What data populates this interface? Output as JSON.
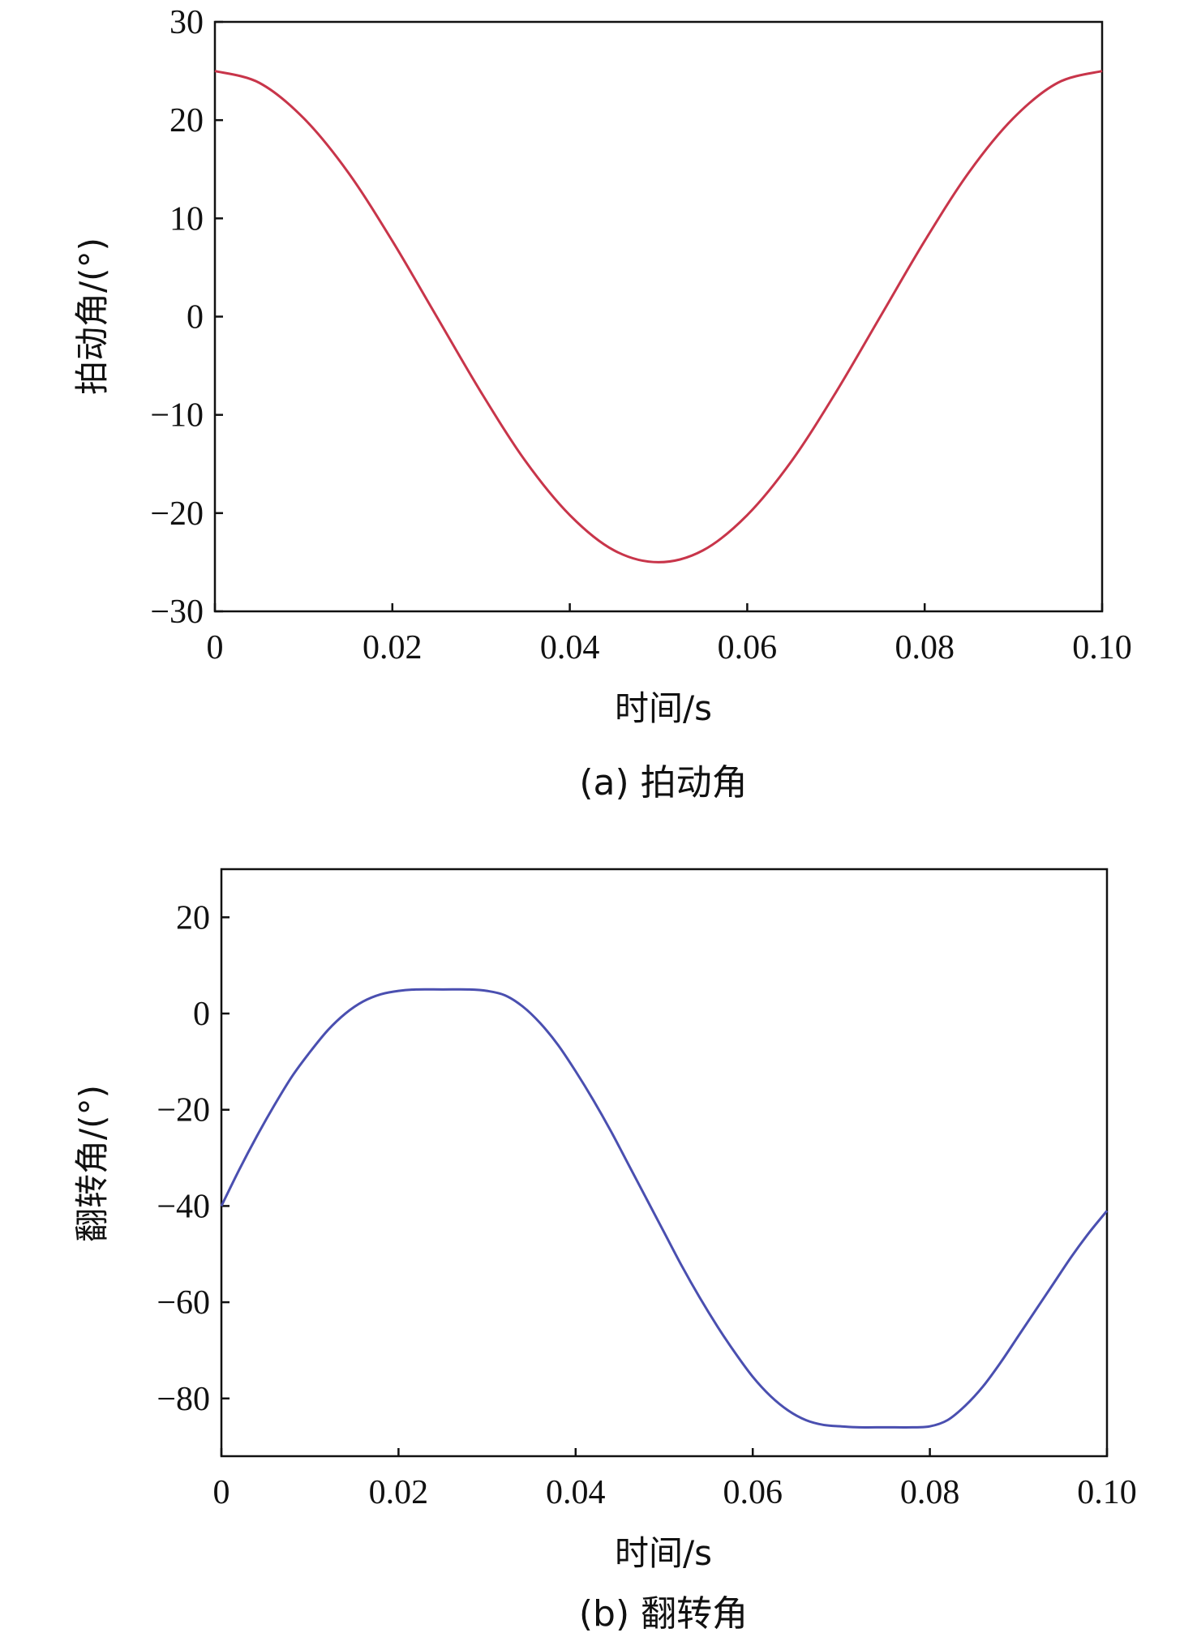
{
  "chart_data": [
    {
      "type": "line",
      "caption": "(a) 拍动角",
      "xlabel": "时间/s",
      "ylabel": "拍动角/(°)",
      "xlim": [
        0,
        0.1
      ],
      "ylim": [
        -30,
        30
      ],
      "xticks": [
        0,
        0.02,
        0.04,
        0.06,
        0.08,
        0.1
      ],
      "xtick_labels": [
        "0",
        "0.02",
        "0.04",
        "0.06",
        "0.08",
        "0.10"
      ],
      "yticks": [
        -30,
        -20,
        -10,
        0,
        10,
        20,
        30
      ],
      "ytick_labels": [
        "−30",
        "−20",
        "−10",
        "0",
        "10",
        "20",
        "30"
      ],
      "grid": false,
      "series": [
        {
          "color": "#c8354a",
          "x": [
            0,
            0.005,
            0.01,
            0.015,
            0.02,
            0.025,
            0.03,
            0.035,
            0.04,
            0.045,
            0.05,
            0.055,
            0.06,
            0.065,
            0.07,
            0.075,
            0.08,
            0.085,
            0.09,
            0.095,
            0.1
          ],
          "y": [
            25,
            23.8,
            20.2,
            14.7,
            7.7,
            0,
            -7.7,
            -14.7,
            -20.2,
            -23.8,
            -25,
            -23.8,
            -20.2,
            -14.7,
            -7.7,
            0,
            7.7,
            14.7,
            20.2,
            23.8,
            25
          ]
        }
      ]
    },
    {
      "type": "line",
      "caption": "(b) 翻转角",
      "xlabel": "时间/s",
      "ylabel": "翻转角/(°)",
      "xlim": [
        0,
        0.1
      ],
      "ylim": [
        -92,
        30
      ],
      "xticks": [
        0,
        0.02,
        0.04,
        0.06,
        0.08,
        0.1
      ],
      "xtick_labels": [
        "0",
        "0.02",
        "0.04",
        "0.06",
        "0.08",
        "0.10"
      ],
      "yticks": [
        -80,
        -60,
        -40,
        -20,
        0,
        20
      ],
      "ytick_labels": [
        "−80",
        "−60",
        "−40",
        "−20",
        "0",
        "20"
      ],
      "grid": false,
      "series": [
        {
          "color": "#4a4fb0",
          "x": [
            0,
            0.002,
            0.004,
            0.006,
            0.008,
            0.01,
            0.012,
            0.014,
            0.016,
            0.018,
            0.02,
            0.022,
            0.025,
            0.028,
            0.03,
            0.032,
            0.034,
            0.036,
            0.038,
            0.04,
            0.042,
            0.044,
            0.046,
            0.048,
            0.05,
            0.052,
            0.054,
            0.056,
            0.058,
            0.06,
            0.062,
            0.064,
            0.066,
            0.068,
            0.07,
            0.072,
            0.075,
            0.078,
            0.08,
            0.082,
            0.084,
            0.086,
            0.088,
            0.09,
            0.092,
            0.094,
            0.096,
            0.098,
            0.1
          ],
          "y": [
            -40,
            -32.5,
            -25.5,
            -19,
            -13,
            -8,
            -3.5,
            0,
            2.5,
            4,
            4.7,
            5,
            5,
            5,
            4.7,
            3.8,
            1.5,
            -2,
            -6.5,
            -12,
            -18,
            -24.5,
            -31.5,
            -38.5,
            -45.5,
            -52.5,
            -59,
            -65,
            -70.5,
            -75.5,
            -79.5,
            -82.5,
            -84.5,
            -85.5,
            -85.8,
            -86,
            -86,
            -86,
            -85.8,
            -84.5,
            -81.5,
            -77.5,
            -72.5,
            -67,
            -61.5,
            -56,
            -50.5,
            -45.5,
            -41
          ]
        }
      ]
    }
  ]
}
